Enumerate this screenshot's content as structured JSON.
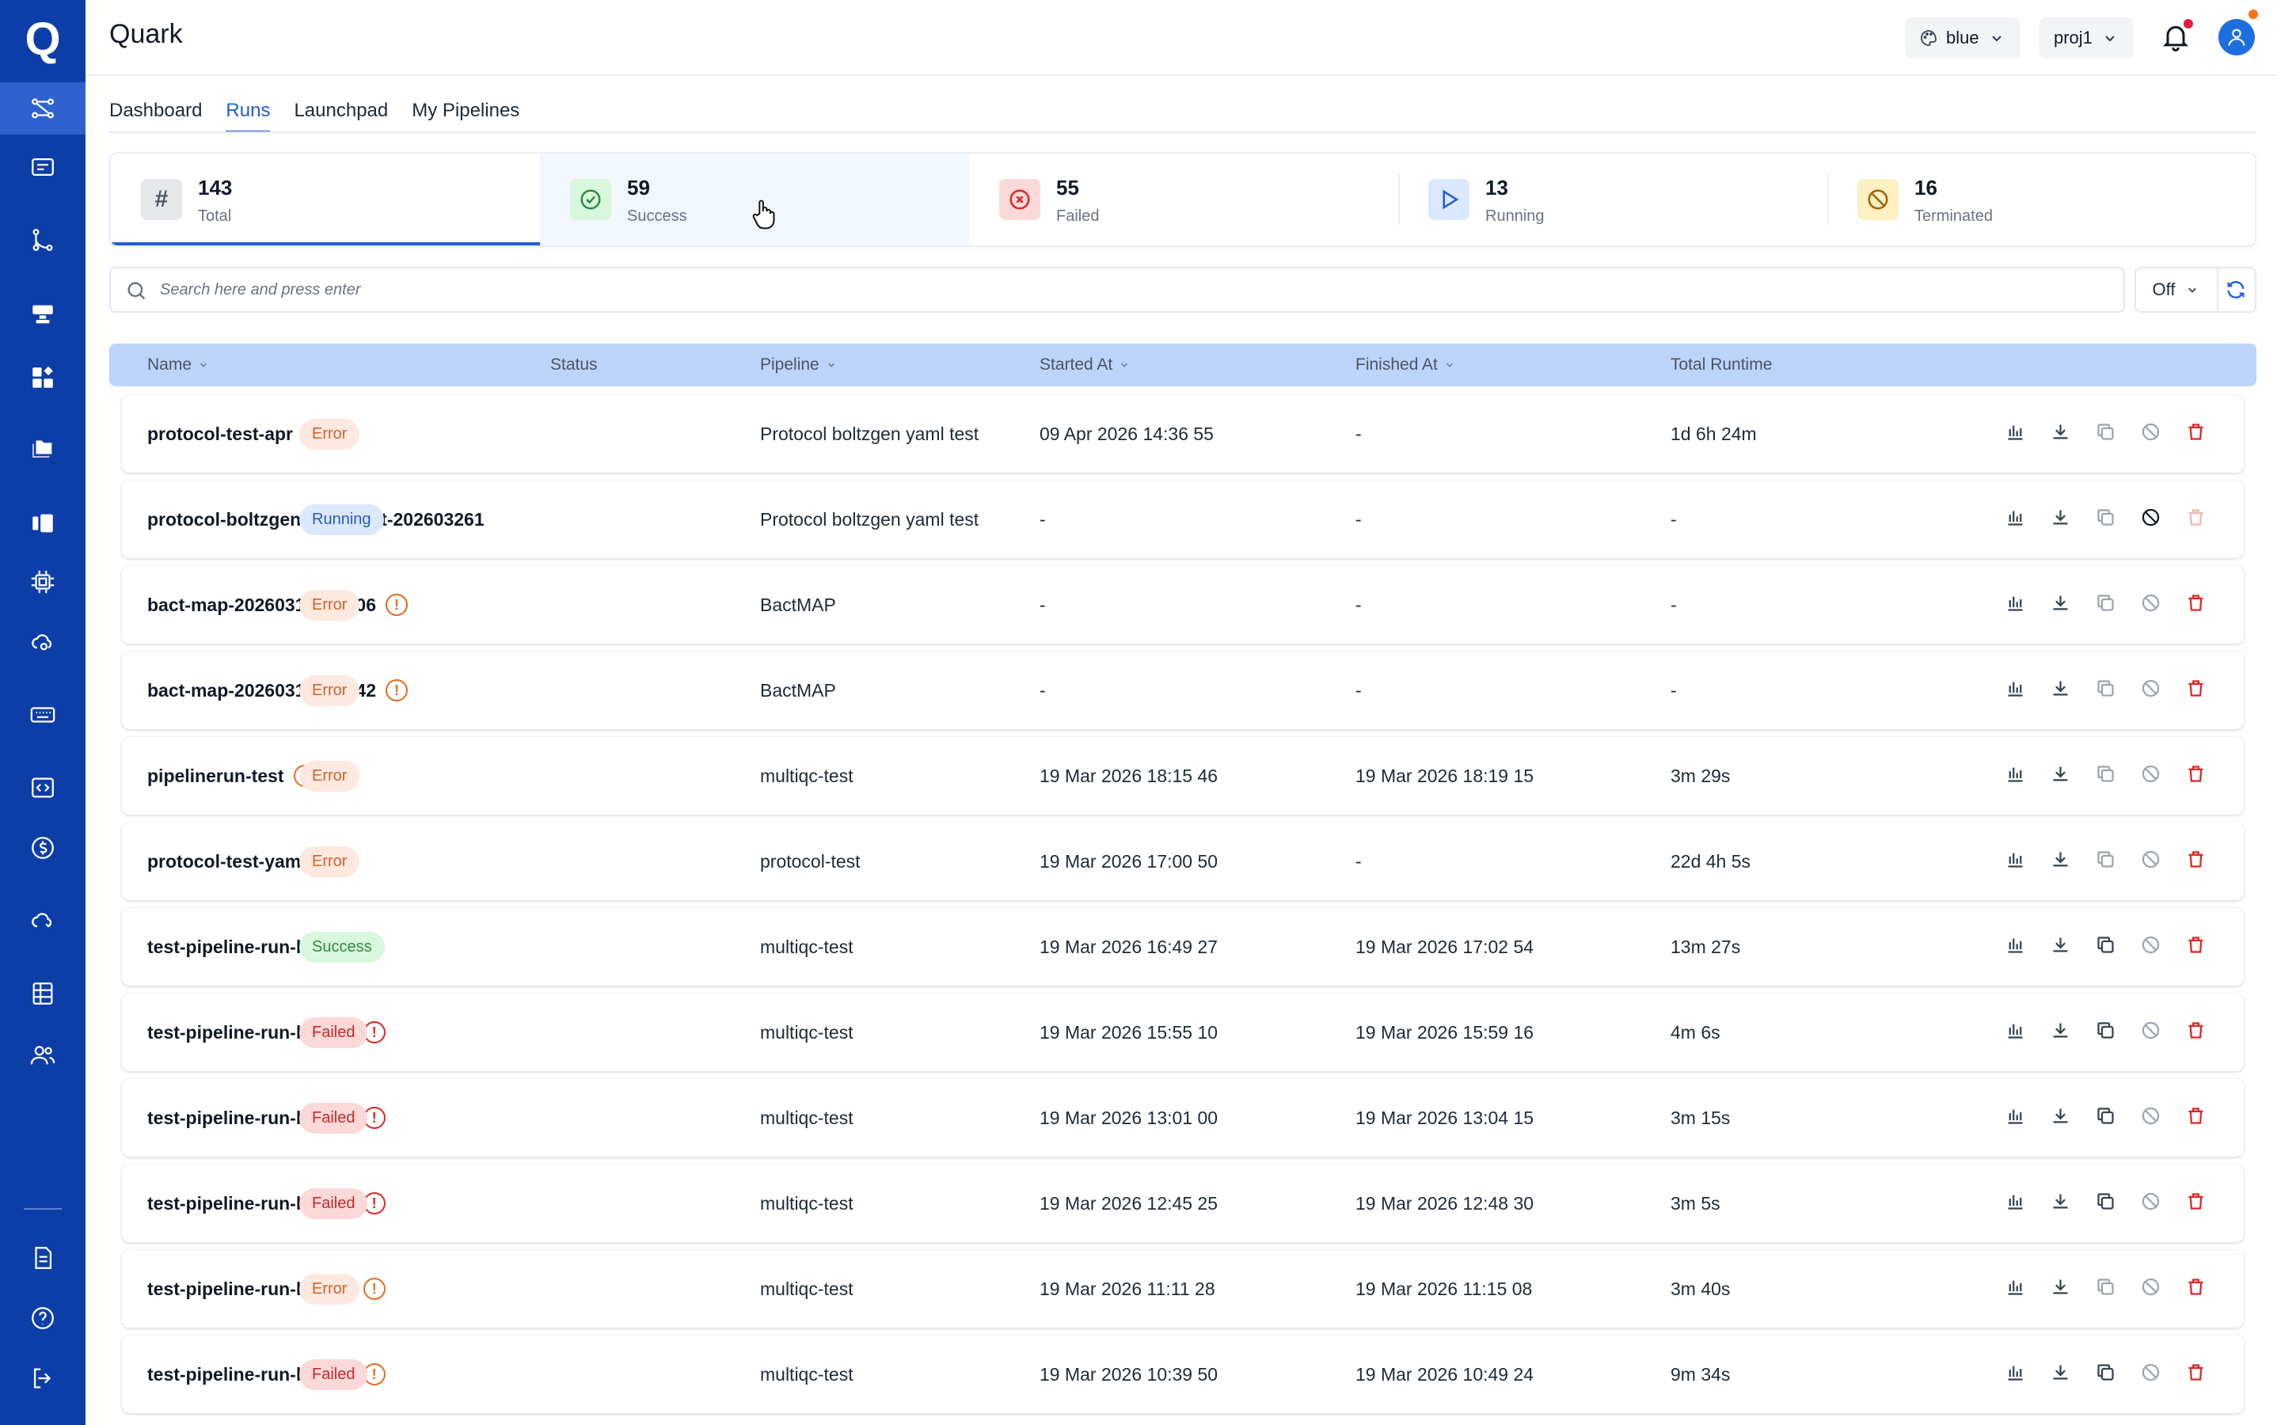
{
  "app": {
    "title": "Quark",
    "logo": "Q"
  },
  "header": {
    "theme": {
      "label": "blue",
      "icon": "palette-icon"
    },
    "project": {
      "label": "proj1"
    },
    "notifications_icon": "bell-icon",
    "avatar_icon": "user-icon",
    "colors": {
      "bell_dot": "#e11d48",
      "avatar_dot": "#f97316"
    }
  },
  "sidebar": {
    "items": [
      {
        "name": "pipelines",
        "icon": "flow-icon",
        "active": true
      },
      {
        "name": "datasets",
        "icon": "database-card-icon"
      },
      {
        "name": "workflow",
        "icon": "branch-icon"
      },
      {
        "name": "compute",
        "icon": "server-icon"
      },
      {
        "name": "apps",
        "icon": "blocks-icon"
      },
      {
        "name": "files",
        "icon": "folders-icon"
      },
      {
        "name": "notebooks",
        "icon": "book-icon"
      },
      {
        "name": "chip",
        "icon": "cpu-icon"
      },
      {
        "name": "cloud-settings",
        "icon": "cloud-gear-icon"
      },
      {
        "name": "keyboard",
        "icon": "keyboard-icon"
      },
      {
        "name": "code",
        "icon": "code-icon"
      },
      {
        "name": "billing",
        "icon": "dollar-icon"
      },
      {
        "name": "cloud-sync",
        "icon": "cloud-sync-icon"
      },
      {
        "name": "table",
        "icon": "table-icon"
      },
      {
        "name": "users",
        "icon": "users-icon"
      }
    ],
    "bottom": [
      {
        "name": "docs",
        "icon": "document-icon"
      },
      {
        "name": "help",
        "icon": "help-icon"
      },
      {
        "name": "logout",
        "icon": "logout-icon"
      }
    ],
    "colors": {
      "bg": "#0d3ea8",
      "active": "#2f62cf"
    }
  },
  "tabs": [
    {
      "label": "Dashboard"
    },
    {
      "label": "Runs",
      "active": true
    },
    {
      "label": "Launchpad"
    },
    {
      "label": "My Pipelines"
    }
  ],
  "stats": [
    {
      "value": "143",
      "label": "Total",
      "icon": "hash-icon",
      "selected": true
    },
    {
      "value": "59",
      "label": "Success",
      "icon": "check-circle-icon"
    },
    {
      "value": "55",
      "label": "Failed",
      "icon": "x-circle-icon"
    },
    {
      "value": "13",
      "label": "Running",
      "icon": "play-icon"
    },
    {
      "value": "16",
      "label": "Terminated",
      "icon": "ban-icon"
    }
  ],
  "search": {
    "placeholder": "Search here and press enter"
  },
  "auto_refresh": {
    "value": "Off"
  },
  "table": {
    "columns": [
      "Name",
      "Status",
      "Pipeline",
      "Started At",
      "Finished At",
      "Total Runtime"
    ],
    "rows": [
      {
        "name": "protocol-test-apr",
        "warn": "orange",
        "status": "Error",
        "pipeline": "Protocol boltzgen yaml test",
        "started": "09 Apr 2026 14:36 55",
        "finished": "-",
        "runtime": "1d 6h 24m"
      },
      {
        "name": "protocol-boltzgen-yaml-test-202603261",
        "warn": "",
        "status": "Running",
        "pipeline": "Protocol boltzgen yaml test",
        "started": "-",
        "finished": "-",
        "runtime": "-"
      },
      {
        "name": "bact-map-20260319182006",
        "warn": "orange",
        "status": "Error",
        "pipeline": "BactMAP",
        "started": "-",
        "finished": "-",
        "runtime": "-"
      },
      {
        "name": "bact-map-20260319181842",
        "warn": "orange",
        "status": "Error",
        "pipeline": "BactMAP",
        "started": "-",
        "finished": "-",
        "runtime": "-"
      },
      {
        "name": "pipelinerun-test",
        "warn": "orange",
        "status": "Error",
        "pipeline": "multiqc-test",
        "started": "19 Mar 2026 18:15 46",
        "finished": "19 Mar 2026 18:19 15",
        "runtime": "3m 29s"
      },
      {
        "name": "protocol-test-yaml",
        "warn": "orange",
        "status": "Error",
        "pipeline": "protocol-test",
        "started": "19 Mar 2026 17:00 50",
        "finished": "-",
        "runtime": "22d 4h 5s"
      },
      {
        "name": "test-pipeline-run-local-7",
        "warn": "",
        "status": "Success",
        "pipeline": "multiqc-test",
        "started": "19 Mar 2026 16:49 27",
        "finished": "19 Mar 2026 17:02 54",
        "runtime": "13m 27s"
      },
      {
        "name": "test-pipeline-run-local-6",
        "warn": "red",
        "status": "Failed",
        "pipeline": "multiqc-test",
        "started": "19 Mar 2026 15:55 10",
        "finished": "19 Mar 2026 15:59 16",
        "runtime": "4m 6s"
      },
      {
        "name": "test-pipeline-run-local-5",
        "warn": "red",
        "status": "Failed",
        "pipeline": "multiqc-test",
        "started": "19 Mar 2026 13:01 00",
        "finished": "19 Mar 2026 13:04 15",
        "runtime": "3m 15s"
      },
      {
        "name": "test-pipeline-run-local-4",
        "warn": "red",
        "status": "Failed",
        "pipeline": "multiqc-test",
        "started": "19 Mar 2026 12:45 25",
        "finished": "19 Mar 2026 12:48 30",
        "runtime": "3m 5s"
      },
      {
        "name": "test-pipeline-run-local-3",
        "warn": "orange",
        "status": "Error",
        "pipeline": "multiqc-test",
        "started": "19 Mar 2026 11:11 28",
        "finished": "19 Mar 2026 11:15 08",
        "runtime": "3m 40s"
      },
      {
        "name": "test-pipeline-run-local-3",
        "warn": "orange",
        "status": "Failed",
        "pipeline": "multiqc-test",
        "started": "19 Mar 2026 10:39 50",
        "finished": "19 Mar 2026 10:49 24",
        "runtime": "9m 34s"
      }
    ],
    "row_actions": [
      "metrics-icon",
      "download-icon",
      "copy-icon",
      "cancel-icon",
      "delete-icon"
    ]
  }
}
